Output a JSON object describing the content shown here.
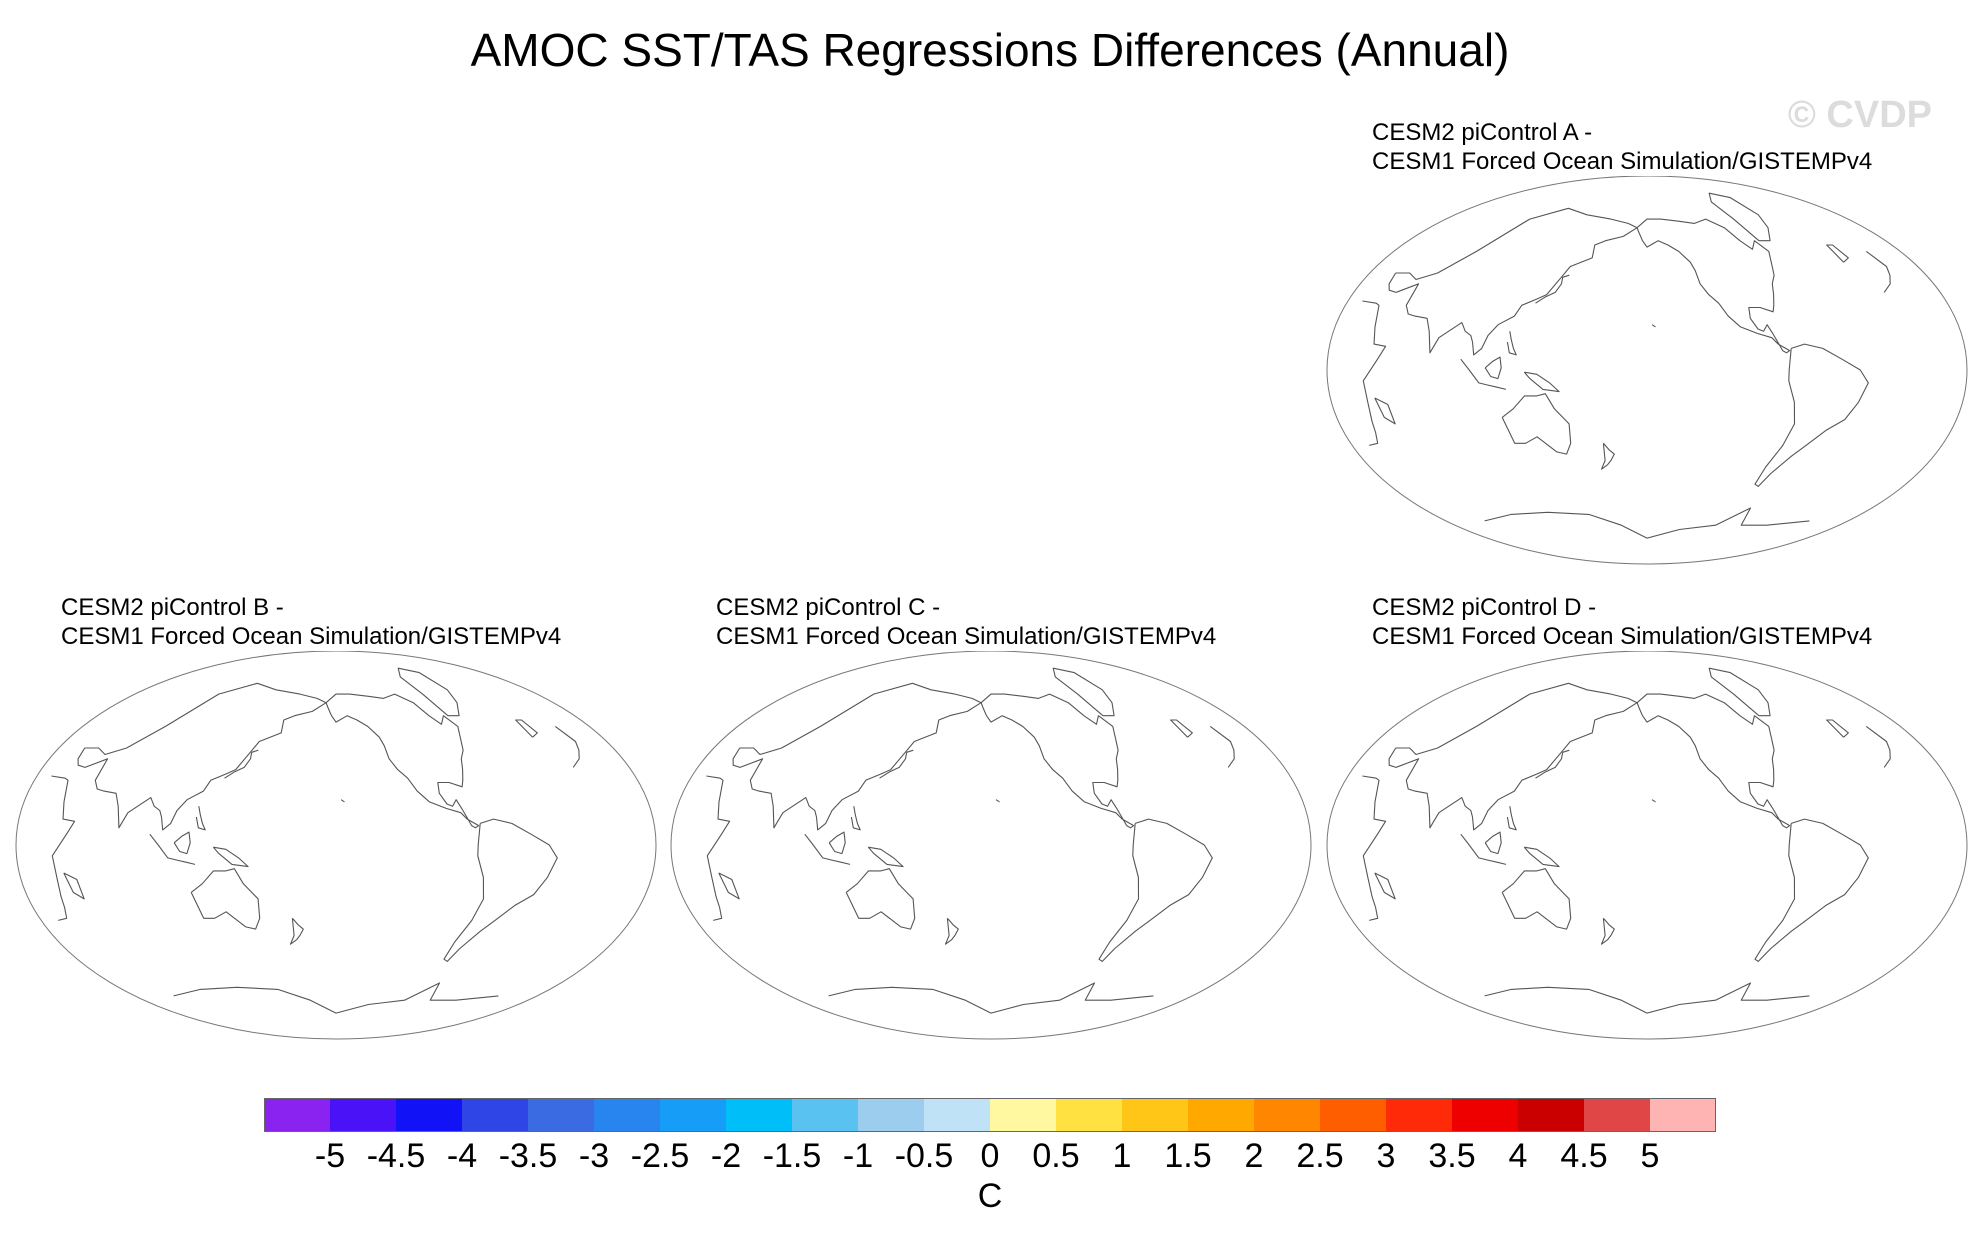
{
  "title": "AMOC SST/TAS Regressions Differences (Annual)",
  "watermark": "© CVDP",
  "panels": [
    {
      "id": "A",
      "line1": "CESM2 piControl A -",
      "line2": "CESM1 Forced Ocean Simulation/GISTEMPv4"
    },
    {
      "id": "B",
      "line1": "CESM2 piControl B -",
      "line2": "CESM1 Forced Ocean Simulation/GISTEMPv4"
    },
    {
      "id": "C",
      "line1": "CESM2 piControl C -",
      "line2": "CESM1 Forced Ocean Simulation/GISTEMPv4"
    },
    {
      "id": "D",
      "line1": "CESM2 piControl D -",
      "line2": "CESM1 Forced Ocean Simulation/GISTEMPv4"
    }
  ],
  "colorbar": {
    "units": "C",
    "labels": [
      "-5",
      "-4.5",
      "-4",
      "-3.5",
      "-3",
      "-2.5",
      "-2",
      "-1.5",
      "-1",
      "-0.5",
      "0",
      "0.5",
      "1",
      "1.5",
      "2",
      "2.5",
      "3",
      "3.5",
      "4",
      "4.5",
      "5"
    ],
    "colors": [
      "#8a22f0",
      "#4a12f6",
      "#1212f6",
      "#3045e6",
      "#3a6be2",
      "#2885f0",
      "#169df7",
      "#00bef7",
      "#59c2f0",
      "#9ccdee",
      "#c0e2f6",
      "#fff8a0",
      "#ffe142",
      "#ffc618",
      "#ffa800",
      "#ff8600",
      "#ff5e00",
      "#ff2a08",
      "#ef0000",
      "#ca0000",
      "#e04646",
      "#ffb4b4"
    ]
  }
}
